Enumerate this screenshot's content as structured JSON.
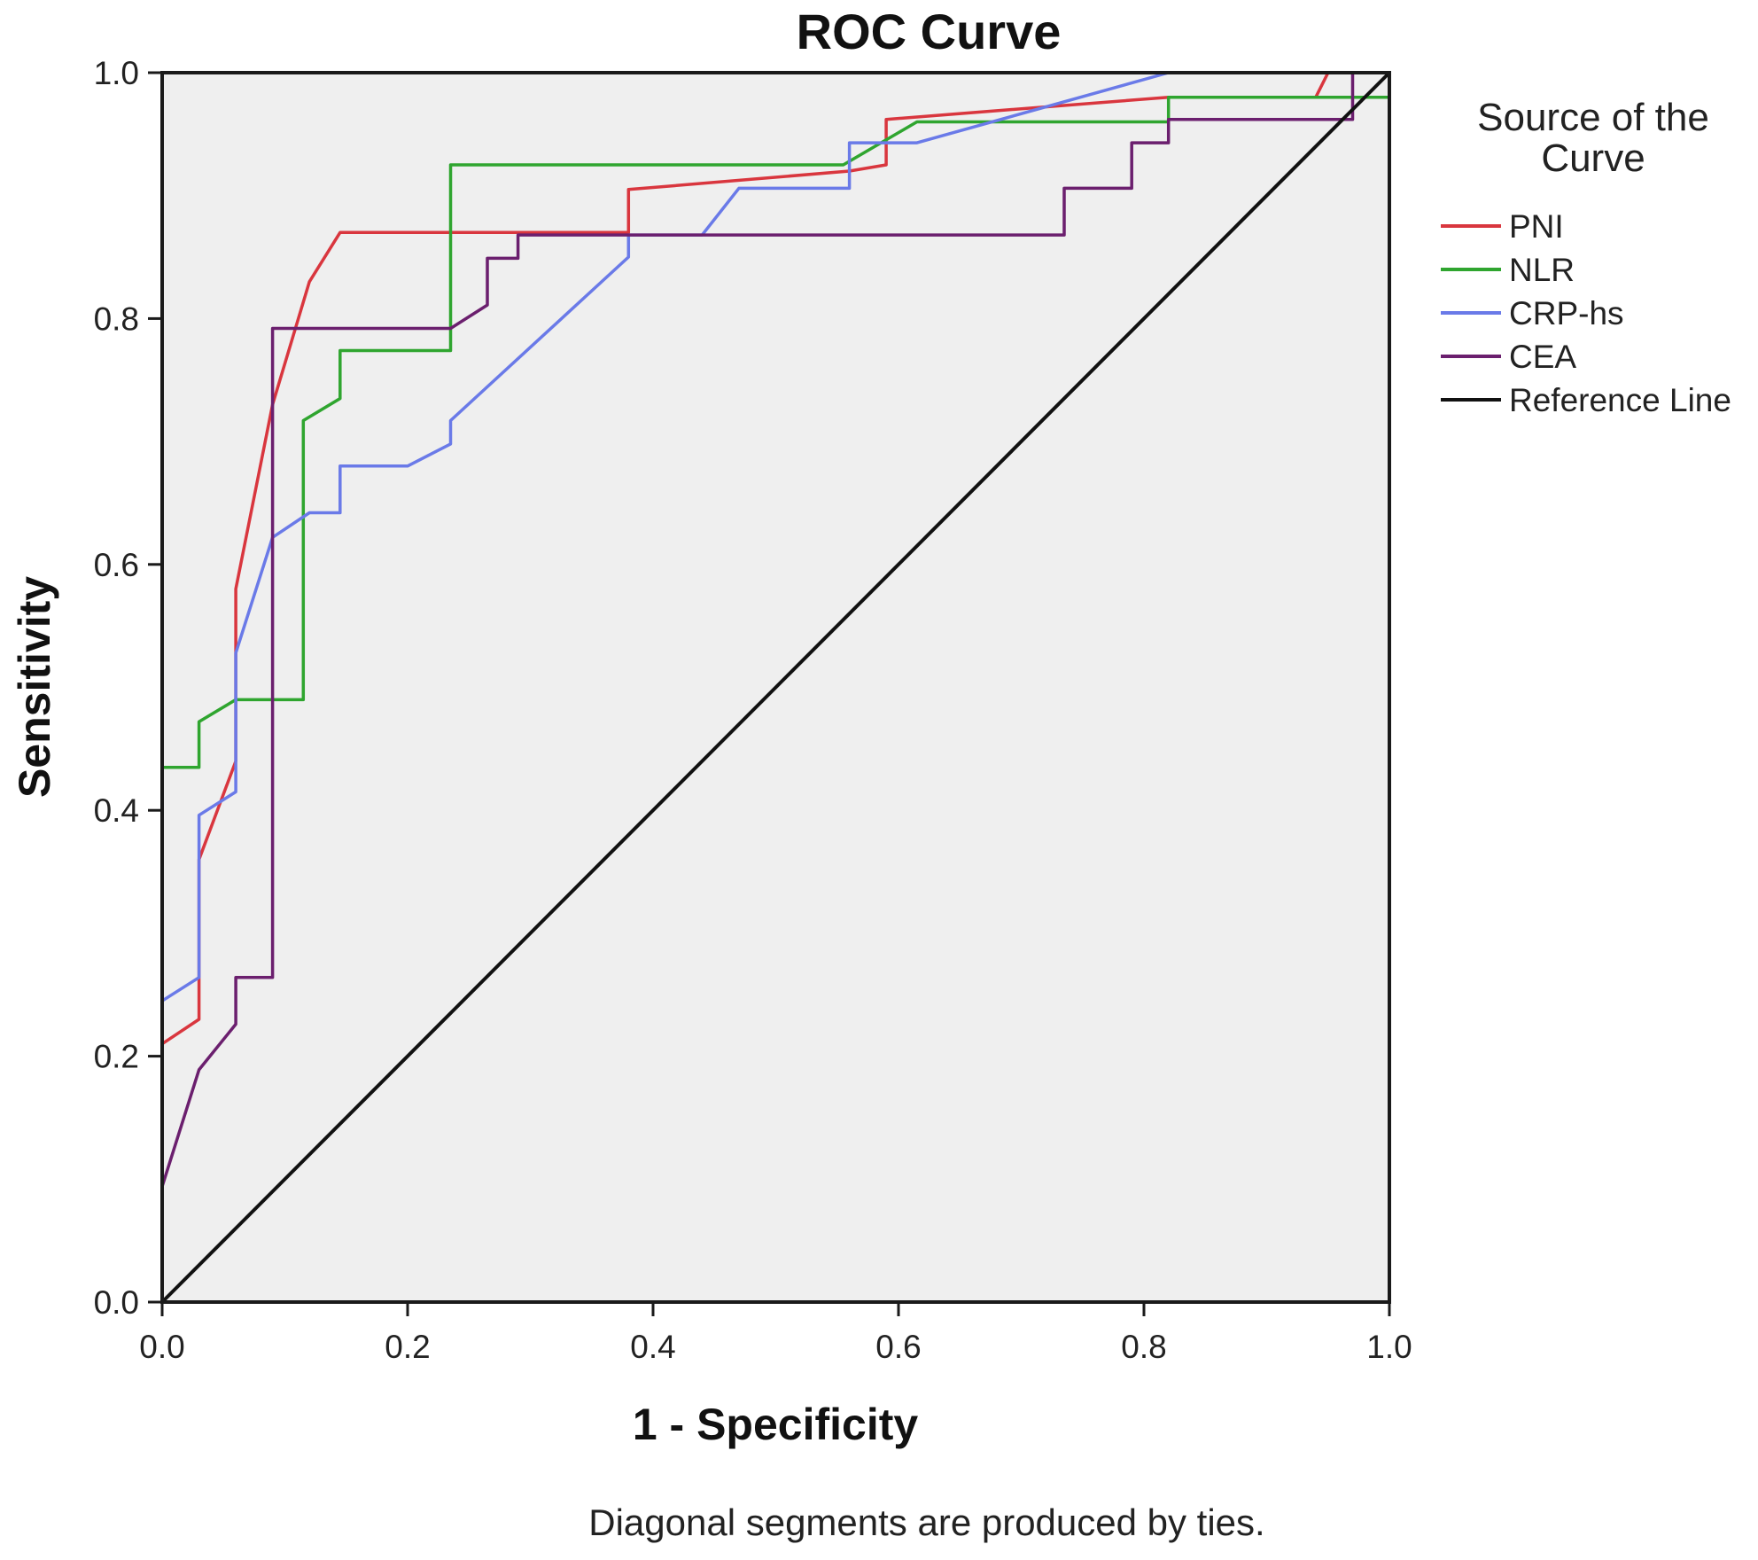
{
  "chart_data": {
    "type": "line",
    "title": "ROC Curve",
    "xlabel": "1 - Specificity",
    "ylabel": "Sensitivity",
    "xlim": [
      0,
      1
    ],
    "ylim": [
      0,
      1
    ],
    "xticks": [
      "0.0",
      "0.2",
      "0.4",
      "0.6",
      "0.8",
      "1.0"
    ],
    "yticks": [
      "0.0",
      "0.2",
      "0.4",
      "0.6",
      "0.8",
      "1.0"
    ],
    "grid": false,
    "legend": {
      "title_lines": [
        "Source of the",
        "Curve"
      ],
      "position": "right"
    },
    "footnote": "Diagonal segments are produced by ties.",
    "series": [
      {
        "name": "PNI",
        "color": "#d9363e",
        "points": [
          [
            0,
            0
          ],
          [
            0,
            0.21
          ],
          [
            0.03,
            0.23
          ],
          [
            0.03,
            0.36
          ],
          [
            0.06,
            0.44
          ],
          [
            0.06,
            0.58
          ],
          [
            0.09,
            0.73
          ],
          [
            0.12,
            0.83
          ],
          [
            0.145,
            0.87
          ],
          [
            0.38,
            0.87
          ],
          [
            0.38,
            0.905
          ],
          [
            0.56,
            0.92
          ],
          [
            0.59,
            0.925
          ],
          [
            0.59,
            0.962
          ],
          [
            0.82,
            0.98
          ],
          [
            0.94,
            0.98
          ],
          [
            0.95,
            1
          ],
          [
            1,
            1
          ]
        ]
      },
      {
        "name": "NLR",
        "color": "#2fa52f",
        "points": [
          [
            0,
            0
          ],
          [
            0,
            0.435
          ],
          [
            0.03,
            0.435
          ],
          [
            0.03,
            0.472
          ],
          [
            0.06,
            0.49
          ],
          [
            0.115,
            0.49
          ],
          [
            0.115,
            0.717
          ],
          [
            0.145,
            0.735
          ],
          [
            0.145,
            0.774
          ],
          [
            0.235,
            0.774
          ],
          [
            0.235,
            0.925
          ],
          [
            0.555,
            0.925
          ],
          [
            0.615,
            0.96
          ],
          [
            0.82,
            0.96
          ],
          [
            0.82,
            0.98
          ],
          [
            1,
            0.98
          ],
          [
            1,
            1
          ]
        ]
      },
      {
        "name": "CRP-hs",
        "color": "#6a7ae8",
        "points": [
          [
            0,
            0
          ],
          [
            0,
            0.245
          ],
          [
            0.03,
            0.264
          ],
          [
            0.03,
            0.396
          ],
          [
            0.06,
            0.415
          ],
          [
            0.06,
            0.528
          ],
          [
            0.09,
            0.622
          ],
          [
            0.12,
            0.642
          ],
          [
            0.145,
            0.642
          ],
          [
            0.145,
            0.68
          ],
          [
            0.2,
            0.68
          ],
          [
            0.235,
            0.698
          ],
          [
            0.235,
            0.717
          ],
          [
            0.38,
            0.85
          ],
          [
            0.38,
            0.868
          ],
          [
            0.44,
            0.868
          ],
          [
            0.47,
            0.906
          ],
          [
            0.56,
            0.906
          ],
          [
            0.56,
            0.943
          ],
          [
            0.615,
            0.943
          ],
          [
            0.82,
            1
          ],
          [
            1,
            1
          ]
        ]
      },
      {
        "name": "CEA",
        "color": "#6b1f6e",
        "points": [
          [
            0,
            0
          ],
          [
            0,
            0.094
          ],
          [
            0.03,
            0.189
          ],
          [
            0.06,
            0.226
          ],
          [
            0.06,
            0.264
          ],
          [
            0.09,
            0.264
          ],
          [
            0.09,
            0.792
          ],
          [
            0.235,
            0.792
          ],
          [
            0.265,
            0.811
          ],
          [
            0.265,
            0.849
          ],
          [
            0.29,
            0.849
          ],
          [
            0.29,
            0.868
          ],
          [
            0.735,
            0.868
          ],
          [
            0.735,
            0.906
          ],
          [
            0.79,
            0.906
          ],
          [
            0.79,
            0.943
          ],
          [
            0.82,
            0.943
          ],
          [
            0.82,
            0.962
          ],
          [
            0.97,
            0.962
          ],
          [
            0.97,
            1
          ],
          [
            1,
            1
          ]
        ]
      },
      {
        "name": "Reference Line",
        "color": "#111111",
        "points": [
          [
            0,
            0
          ],
          [
            1,
            1
          ]
        ]
      }
    ]
  }
}
